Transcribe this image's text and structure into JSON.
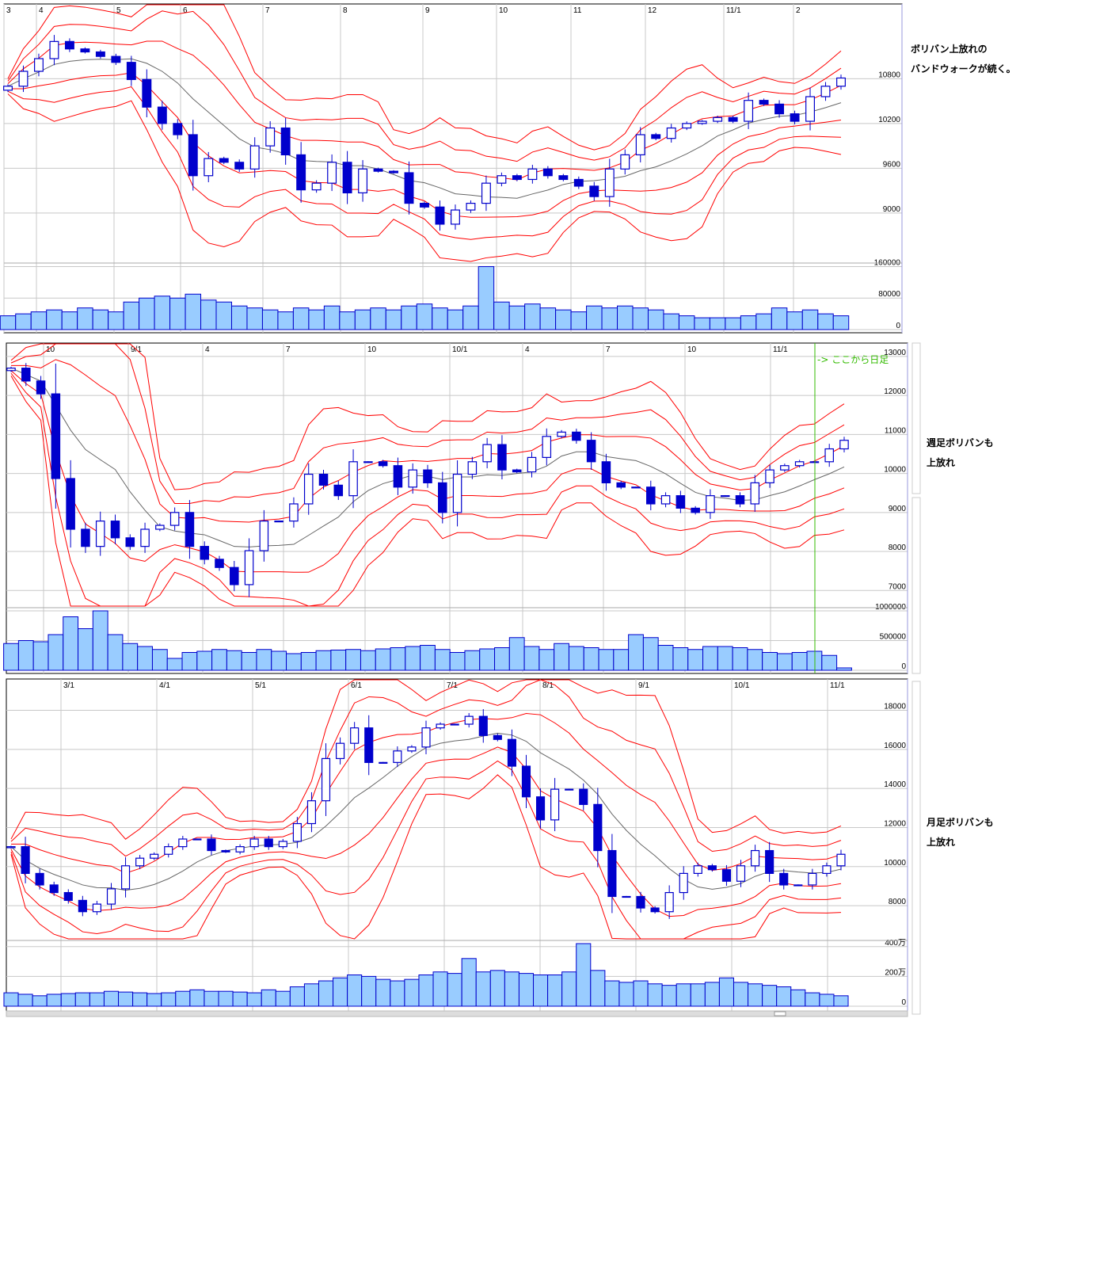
{
  "colors": {
    "up_fill": "#ffffff",
    "candle": "#0000cc",
    "band": "#ff0000",
    "ma": "#666666",
    "volume": "#99ccff",
    "grid": "#c8c8c8",
    "daily_marker": "#33bb00"
  },
  "annotations": {
    "daily_line1": "ボリバン上放れの",
    "daily_line2": "バンドウォークが続く。",
    "weekly_line1": "週足ボリバンも",
    "weekly_line2": "上放れ",
    "monthly_line1": "月足ボリバンも",
    "monthly_line2": "上放れ"
  },
  "chart_data": [
    {
      "type": "candlestick",
      "x_tick_labels": [
        "3",
        "4",
        "5",
        "6",
        "7",
        "8",
        "9",
        "10",
        "11",
        "12",
        "11/1",
        "2"
      ],
      "price_ticks": [
        {
          "value": 10800,
          "label": "10800"
        },
        {
          "value": 10200,
          "label": "10200"
        },
        {
          "value": 9600,
          "label": "9600"
        },
        {
          "value": 9000,
          "label": "9000"
        }
      ],
      "volume_ticks": [
        {
          "value": 160000,
          "label": "160000"
        },
        {
          "value": 80000,
          "label": "80000"
        },
        {
          "value": 0,
          "label": "0"
        }
      ],
      "ylim": [
        8350,
        11750
      ],
      "volume_max": 165000,
      "overlays": [
        "bollinger ±1σ/±2σ/±3σ",
        "moving average"
      ],
      "close": [
        10700,
        10900,
        11070,
        11300,
        11200,
        11160,
        11100,
        11020,
        10790,
        10420,
        10200,
        10050,
        9500,
        9730,
        9680,
        9590,
        9900,
        10140,
        9780,
        9310,
        9400,
        9680,
        9270,
        9590,
        9560,
        9540,
        9130,
        9080,
        8850,
        9040,
        9130,
        9400,
        9500,
        9450,
        9590,
        9500,
        9450,
        9360,
        9220,
        9590,
        9780,
        10050,
        10000,
        10140,
        10200,
        10230,
        10280,
        10230,
        10510,
        10460,
        10330,
        10230,
        10560,
        10700,
        10810
      ],
      "volume": [
        35000,
        40000,
        45000,
        50000,
        45000,
        55000,
        50000,
        45000,
        70000,
        80000,
        85000,
        80000,
        90000,
        75000,
        70000,
        60000,
        55000,
        50000,
        45000,
        55000,
        50000,
        60000,
        45000,
        50000,
        55000,
        50000,
        60000,
        65000,
        55000,
        50000,
        60000,
        160000,
        70000,
        60000,
        65000,
        55000,
        50000,
        45000,
        60000,
        55000,
        60000,
        55000,
        50000,
        40000,
        35000,
        30000,
        30000,
        30000,
        35000,
        40000,
        55000,
        45000,
        50000,
        40000,
        35000
      ]
    },
    {
      "type": "candlestick",
      "x_tick_labels": [
        "10",
        "9/1",
        "4",
        "7",
        "10",
        "10/1",
        "4",
        "7",
        "10",
        "11/1"
      ],
      "price_ticks": [
        {
          "value": 13000,
          "label": "13000"
        },
        {
          "value": 12000,
          "label": "12000"
        },
        {
          "value": 11000,
          "label": "11000"
        },
        {
          "value": 10000,
          "label": "10000"
        },
        {
          "value": 9000,
          "label": "9000"
        },
        {
          "value": 8000,
          "label": "8000"
        },
        {
          "value": 7000,
          "label": "7000"
        }
      ],
      "volume_ticks": [
        {
          "value": 1000000,
          "label": "1000000"
        },
        {
          "value": 500000,
          "label": "500000"
        },
        {
          "value": 0,
          "label": "0"
        }
      ],
      "ylim": [
        6600,
        13200
      ],
      "volume_max": 1000000,
      "marker_label": "-> ここから日足",
      "overlays": [
        "bollinger ±1σ/±2σ/±3σ",
        "moving average"
      ],
      "close": [
        12700,
        12370,
        12040,
        9870,
        8570,
        8130,
        8780,
        8350,
        8130,
        8570,
        8670,
        9000,
        8130,
        7800,
        7590,
        7150,
        8020,
        8780,
        8780,
        9220,
        9980,
        9700,
        9430,
        10300,
        10300,
        10200,
        9650,
        10090,
        9760,
        9000,
        9980,
        10300,
        10740,
        10090,
        10040,
        10410,
        10950,
        11060,
        10850,
        10300,
        9760,
        9650,
        9650,
        9220,
        9430,
        9110,
        9000,
        9430,
        9430,
        9220,
        9760,
        10090,
        10200,
        10300,
        10300,
        10630,
        10850
      ],
      "volume": [
        450000,
        500000,
        480000,
        600000,
        900000,
        700000,
        1000000,
        600000,
        450000,
        400000,
        350000,
        200000,
        300000,
        320000,
        350000,
        330000,
        300000,
        350000,
        320000,
        280000,
        300000,
        330000,
        340000,
        350000,
        330000,
        360000,
        380000,
        400000,
        420000,
        350000,
        300000,
        330000,
        360000,
        380000,
        550000,
        400000,
        350000,
        450000,
        400000,
        380000,
        350000,
        350000,
        600000,
        550000,
        420000,
        380000,
        350000,
        400000,
        400000,
        380000,
        350000,
        300000,
        280000,
        300000,
        320000,
        250000,
        40000
      ]
    },
    {
      "type": "candlestick",
      "x_tick_labels": [
        "3/1",
        "4/1",
        "5/1",
        "6/1",
        "7/1",
        "8/1",
        "9/1",
        "10/1",
        "11/1"
      ],
      "price_ticks": [
        {
          "value": 18000,
          "label": "18000"
        },
        {
          "value": 16000,
          "label": "16000"
        },
        {
          "value": 14000,
          "label": "14000"
        },
        {
          "value": 12000,
          "label": "12000"
        },
        {
          "value": 10000,
          "label": "10000"
        },
        {
          "value": 8000,
          "label": "8000"
        }
      ],
      "volume_ticks": [
        {
          "value": 4000000,
          "label": "400万"
        },
        {
          "value": 2000000,
          "label": "200万"
        },
        {
          "value": 0,
          "label": "0"
        }
      ],
      "ylim": [
        6300,
        19400
      ],
      "volume_max": 4200000,
      "overlays": [
        "bollinger ±1σ/±2σ/±3σ",
        "moving average"
      ],
      "close": [
        11020,
        9650,
        9060,
        8670,
        8270,
        7690,
        8080,
        8860,
        10040,
        10430,
        10630,
        11020,
        11410,
        11410,
        10820,
        10750,
        11020,
        11410,
        11020,
        11290,
        12200,
        13370,
        15530,
        16310,
        17100,
        15330,
        15330,
        15920,
        16120,
        17100,
        17290,
        17290,
        17690,
        16710,
        16510,
        15140,
        13570,
        12390,
        13960,
        13960,
        13180,
        10820,
        8470,
        8470,
        7880,
        7690,
        8670,
        9650,
        10040,
        9840,
        9250,
        10040,
        10820,
        9650,
        9060,
        9060,
        9650,
        10040,
        10630
      ],
      "volume": [
        900000,
        800000,
        700000,
        800000,
        850000,
        900000,
        900000,
        1000000,
        950000,
        900000,
        850000,
        900000,
        1000000,
        1100000,
        1000000,
        1000000,
        950000,
        900000,
        1100000,
        1000000,
        1300000,
        1500000,
        1700000,
        1900000,
        2100000,
        2000000,
        1800000,
        1700000,
        1800000,
        2100000,
        2300000,
        2200000,
        3200000,
        2300000,
        2400000,
        2300000,
        2200000,
        2100000,
        2100000,
        2300000,
        4200000,
        2400000,
        1700000,
        1600000,
        1700000,
        1500000,
        1400000,
        1500000,
        1500000,
        1600000,
        1900000,
        1600000,
        1500000,
        1400000,
        1300000,
        1100000,
        900000,
        800000,
        700000
      ]
    }
  ]
}
